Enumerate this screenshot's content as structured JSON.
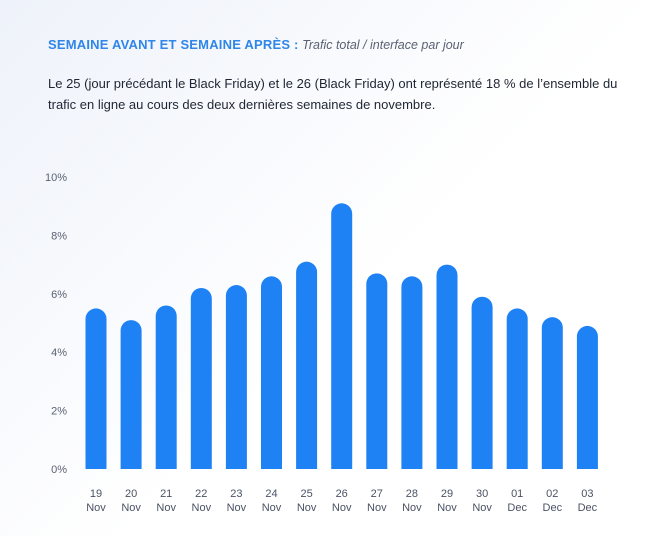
{
  "header": {
    "title": "SEMAINE AVANT ET SEMAINE APRÈS :",
    "subtitle": "Trafic total / interface par jour"
  },
  "description": "Le 25 (jour précédant le Black Friday) et le 26 (Black Friday) ont représenté 18 % de l’ensemble du trafic en ligne au cours des deux dernières semaines de novembre.",
  "colors": {
    "bar": "#1e82f5",
    "title": "#2f86e8"
  },
  "chart_data": {
    "type": "bar",
    "categories": [
      {
        "day": "19",
        "month": "Nov"
      },
      {
        "day": "20",
        "month": "Nov"
      },
      {
        "day": "21",
        "month": "Nov"
      },
      {
        "day": "22",
        "month": "Nov"
      },
      {
        "day": "23",
        "month": "Nov"
      },
      {
        "day": "24",
        "month": "Nov"
      },
      {
        "day": "25",
        "month": "Nov"
      },
      {
        "day": "26",
        "month": "Nov"
      },
      {
        "day": "27",
        "month": "Nov"
      },
      {
        "day": "28",
        "month": "Nov"
      },
      {
        "day": "29",
        "month": "Nov"
      },
      {
        "day": "30",
        "month": "Nov"
      },
      {
        "day": "01",
        "month": "Dec"
      },
      {
        "day": "02",
        "month": "Dec"
      },
      {
        "day": "03",
        "month": "Dec"
      }
    ],
    "values": [
      5.5,
      5.1,
      5.6,
      6.2,
      6.3,
      6.6,
      7.1,
      9.1,
      6.7,
      6.6,
      7.0,
      5.9,
      5.5,
      5.2,
      4.9
    ],
    "yticks": [
      "0%",
      "2%",
      "4%",
      "6%",
      "8%",
      "10%"
    ],
    "ylim": [
      0,
      10
    ],
    "grid": false,
    "legend": "none"
  }
}
